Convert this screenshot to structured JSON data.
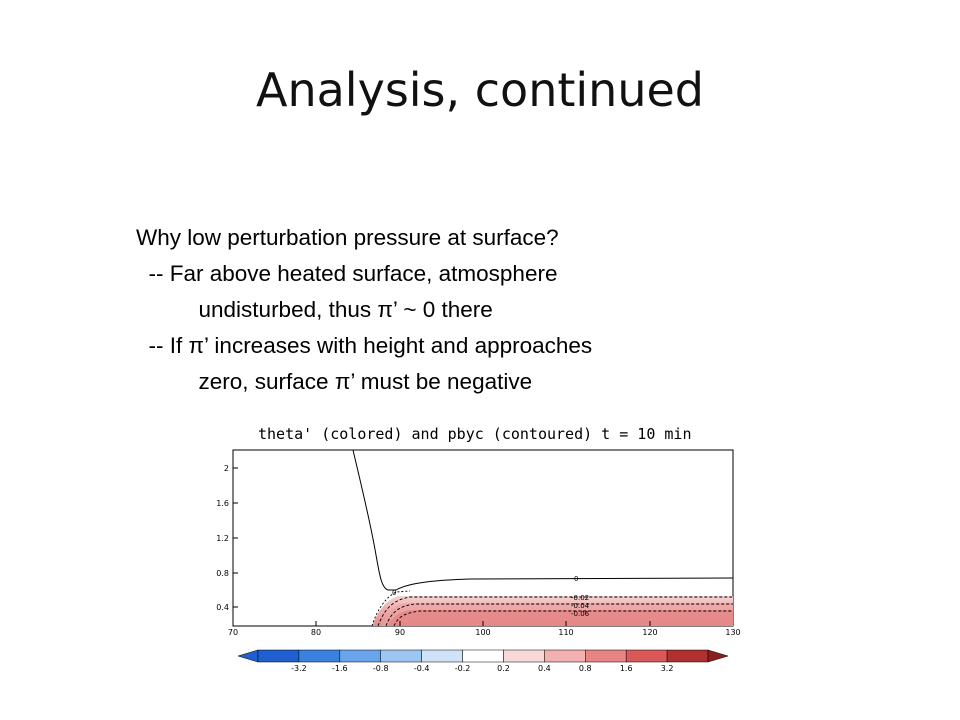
{
  "slide": {
    "title": "Analysis, continued",
    "bullets": [
      "Why low perturbation pressure at surface?",
      "  -- Far above heated surface, atmosphere",
      "          undisturbed, thus π’ ~ 0 there",
      "  -- If π’ increases with height and approaches",
      "          zero, surface π’ must be negative"
    ]
  },
  "figure": {
    "title": "theta' (colored) and pbyc (contoured) t = 10 min",
    "x_ticks": [
      "70",
      "80",
      "90",
      "100",
      "110",
      "120",
      "130"
    ],
    "y_ticks": [
      "0.4",
      "0.8",
      "1.2",
      "1.6",
      "2"
    ],
    "contour_labels": [
      "0",
      "0",
      "-0.02",
      "-0.04",
      "-0.06"
    ],
    "colorbar_labels": [
      "-3.2",
      "-1.6",
      "-0.8",
      "-0.4",
      "-0.2",
      "0.2",
      "0.4",
      "0.8",
      "1.6",
      "3.2"
    ],
    "colorbar_colors": [
      "#1f5fd0",
      "#3b82e0",
      "#6aa4ea",
      "#9ec6f2",
      "#cfe2f8",
      "#ffffff",
      "#f7d8d8",
      "#f2b0b0",
      "#e98484",
      "#db5858",
      "#b03030"
    ]
  }
}
